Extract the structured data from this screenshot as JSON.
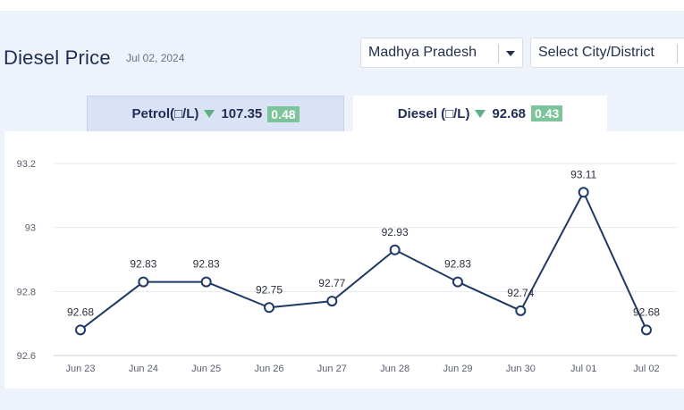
{
  "header": {
    "title": "Diesel Price",
    "date": "Jul 02, 2024",
    "state_select": "Madhya Pradesh",
    "city_select": "Select City/District"
  },
  "tabs": {
    "petrol": {
      "label": "Petrol(□/L)",
      "price": "107.35",
      "change": "0.48"
    },
    "diesel": {
      "label": "Diesel (□/L)",
      "price": "92.68",
      "change": "0.43"
    }
  },
  "colors": {
    "line": "#1f3864",
    "badge": "#7cc49a",
    "down_arrow": "#5fae84",
    "active_tab": "#ffffff",
    "inactive_tab": "#dae2f6"
  },
  "chart_data": {
    "type": "line",
    "categories": [
      "Jun 23",
      "Jun 24",
      "Jun 25",
      "Jun 26",
      "Jun 27",
      "Jun 28",
      "Jun 29",
      "Jun 30",
      "Jul 01",
      "Jul 02"
    ],
    "series": [
      {
        "values": [
          92.68,
          92.83,
          92.83,
          92.75,
          92.77,
          92.93,
          92.83,
          92.74,
          93.11,
          92.68
        ]
      }
    ],
    "data_labels": [
      "92.68",
      "92.83",
      "92.83",
      "92.75",
      "92.77",
      "92.93",
      "92.83",
      "92.74",
      "93.11",
      "92.68"
    ],
    "yticks": [
      "92.6",
      "92.8",
      "93",
      "93.2"
    ],
    "ytick_values": [
      92.6,
      92.8,
      93.0,
      93.2
    ],
    "ylim": [
      92.6,
      93.2
    ],
    "grid": true,
    "title": "",
    "xlabel": "",
    "ylabel": ""
  }
}
